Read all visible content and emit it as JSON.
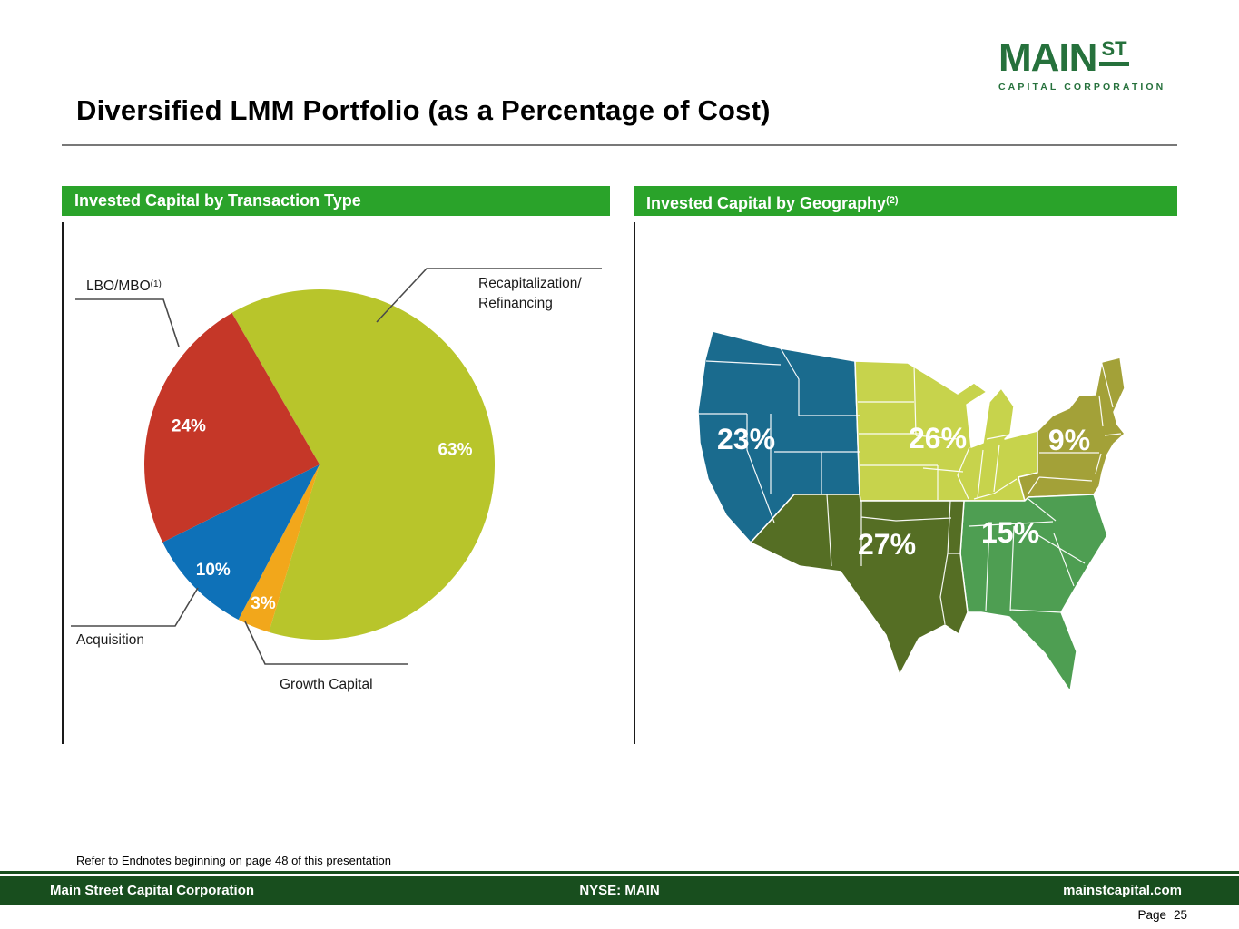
{
  "slide": {
    "title": "Diversified LMM Portfolio (as a Percentage of Cost)",
    "logo": {
      "main": "MAIN",
      "st": "ST",
      "subtitle": "CAPITAL CORPORATION"
    },
    "endnote": "Refer to Endnotes beginning on page 48 of this presentation",
    "footer": {
      "left": "Main Street Capital Corporation",
      "center": "NYSE: MAIN",
      "right": "mainstcapital.com"
    },
    "page_label": "Page",
    "page_number": "25"
  },
  "panels": {
    "left": {
      "header": "Invested Capital by Transaction Type"
    },
    "right": {
      "header": "Invested Capital by Geography",
      "header_superscript": "(2)"
    }
  },
  "callouts": {
    "lbo_label": "LBO/MBO",
    "lbo_superscript": "(1)",
    "recap_line1": "Recapitalization/",
    "recap_line2": "Refinancing",
    "acquisition_label": "Acquisition",
    "growth_label": "Growth Capital"
  },
  "colors": {
    "header_bar_green": "#2aa32a",
    "footer_bar_green": "#184e1e",
    "logo_green": "#26713c",
    "divider_gray": "#787878",
    "leader_line_gray": "#4a4a4a"
  },
  "chart_data": [
    {
      "type": "pie",
      "title": "Invested Capital by Transaction Type",
      "unit": "percent of invested capital at cost",
      "start_angle_deg": -30,
      "direction": "clockwise",
      "slices": [
        {
          "label": "Recapitalization/Refinancing",
          "value": 63,
          "pct_label": "63%",
          "color": "#b8c52b"
        },
        {
          "label": "Growth Capital",
          "value": 3,
          "pct_label": "3%",
          "color": "#f2a71b"
        },
        {
          "label": "Acquisition",
          "value": 10,
          "pct_label": "10%",
          "color": "#0e71b8"
        },
        {
          "label": "LBO/MBO",
          "value": 24,
          "pct_label": "24%",
          "color": "#c53728",
          "footnote": "(1)"
        }
      ]
    },
    {
      "type": "choropleth-map",
      "title": "Invested Capital by Geography",
      "footnote": "(2)",
      "unit": "percent of invested capital at cost",
      "regions": [
        {
          "name": "West",
          "value": 23,
          "pct_label": "23%",
          "color": "#1a6b8e"
        },
        {
          "name": "Midwest",
          "value": 26,
          "pct_label": "26%",
          "color": "#c7d34c"
        },
        {
          "name": "Northeast",
          "value": 9,
          "pct_label": "9%",
          "color": "#a3a138"
        },
        {
          "name": "Southeast",
          "value": 15,
          "pct_label": "15%",
          "color": "#4e9e52"
        },
        {
          "name": "Southwest",
          "value": 27,
          "pct_label": "27%",
          "color": "#556e24"
        }
      ]
    }
  ]
}
